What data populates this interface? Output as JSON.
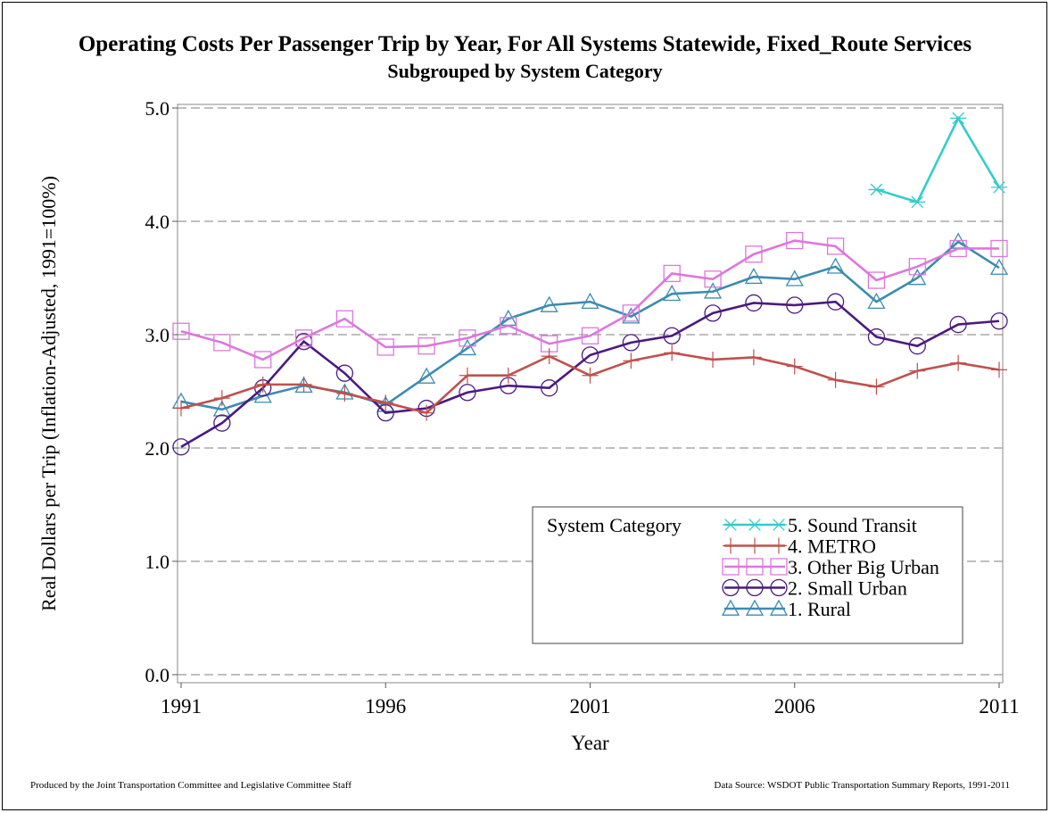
{
  "chart_data": {
    "type": "line",
    "title": "Operating Costs Per Passenger Trip by Year, For All Systems Statewide, Fixed_Route Services",
    "subtitle": "Subgrouped by System Category",
    "xlabel": "Year",
    "ylabel": "Real Dollars per Trip (Inflation-Adjusted, 1991=100%)",
    "xlim": [
      1991,
      2011
    ],
    "ylim": [
      0,
      5
    ],
    "x_ticks": [
      "1991",
      "1996",
      "2001",
      "2006",
      "2011"
    ],
    "y_ticks": [
      "0.0",
      "1.0",
      "2.0",
      "3.0",
      "4.0",
      "5.0"
    ],
    "grid": "horizontal dashed",
    "legend": {
      "title": "System Category",
      "position": "lower-right"
    },
    "series": [
      {
        "name": "5. Sound Transit",
        "color": "#33cccc",
        "marker": "star",
        "x": [
          2008,
          2009,
          2010,
          2011
        ],
        "values": [
          4.28,
          4.17,
          4.91,
          4.3
        ]
      },
      {
        "name": "4. METRO",
        "color": "#c0504d",
        "marker": "plus",
        "x": [
          1991,
          1992,
          1993,
          1994,
          1995,
          1996,
          1997,
          1998,
          1999,
          2000,
          2001,
          2002,
          2003,
          2004,
          2005,
          2006,
          2007,
          2008,
          2009,
          2010,
          2011
        ],
        "values": [
          2.35,
          2.44,
          2.56,
          2.56,
          2.48,
          2.4,
          2.31,
          2.64,
          2.64,
          2.81,
          2.64,
          2.77,
          2.84,
          2.78,
          2.8,
          2.72,
          2.6,
          2.54,
          2.68,
          2.75,
          2.69
        ]
      },
      {
        "name": "3. Other Big Urban",
        "color": "#dd77dd",
        "marker": "square",
        "x": [
          1991,
          1992,
          1993,
          1994,
          1995,
          1996,
          1997,
          1998,
          1999,
          2000,
          2001,
          2002,
          2003,
          2004,
          2005,
          2006,
          2007,
          2008,
          2009,
          2010,
          2011
        ],
        "values": [
          3.03,
          2.93,
          2.78,
          2.97,
          3.14,
          2.89,
          2.9,
          2.97,
          3.08,
          2.92,
          2.99,
          3.19,
          3.54,
          3.49,
          3.71,
          3.83,
          3.78,
          3.48,
          3.6,
          3.76,
          3.76
        ]
      },
      {
        "name": "2. Small Urban",
        "color": "#4b1a80",
        "marker": "circle",
        "x": [
          1991,
          1992,
          1993,
          1994,
          1995,
          1996,
          1997,
          1998,
          1999,
          2000,
          2001,
          2002,
          2003,
          2004,
          2005,
          2006,
          2007,
          2008,
          2009,
          2010,
          2011
        ],
        "values": [
          2.01,
          2.22,
          2.53,
          2.94,
          2.66,
          2.31,
          2.35,
          2.49,
          2.55,
          2.53,
          2.82,
          2.93,
          2.99,
          3.19,
          3.28,
          3.26,
          3.29,
          2.98,
          2.9,
          3.09,
          3.12
        ]
      },
      {
        "name": "1. Rural",
        "color": "#3d8bb0",
        "marker": "triangle",
        "x": [
          1991,
          1992,
          1993,
          1994,
          1995,
          1996,
          1997,
          1998,
          1999,
          2000,
          2001,
          2002,
          2003,
          2004,
          2005,
          2006,
          2007,
          2008,
          2009,
          2010,
          2011
        ],
        "values": [
          2.41,
          2.34,
          2.46,
          2.55,
          2.49,
          2.38,
          2.63,
          2.88,
          3.14,
          3.26,
          3.29,
          3.16,
          3.36,
          3.38,
          3.51,
          3.49,
          3.6,
          3.29,
          3.5,
          3.82,
          3.59
        ]
      }
    ]
  },
  "footer": {
    "left": "Produced by the Joint Transportation Committee and Legislative Committee Staff",
    "right": "Data Source: WSDOT Public Transportation Summary Reports, 1991-2011"
  }
}
